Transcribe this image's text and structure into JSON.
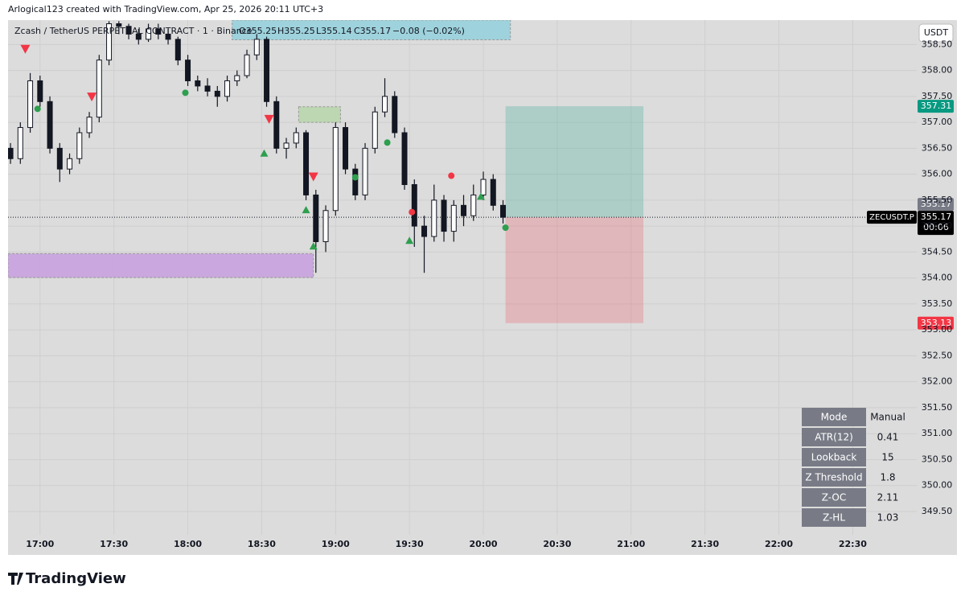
{
  "header": {
    "credit": "Arlogical123 created with TradingView.com, Apr 25, 2026 20:11 UTC+3",
    "symbol": "Zcash / TetherUS PERPETUAL CONTRACT · 1 · Binance",
    "open": "O355.25",
    "high": "H355.25",
    "low": "L355.14",
    "close": "C355.17",
    "change": "−0.08 (−0.02%)",
    "currency": "USDT"
  },
  "chart_data": {
    "type": "candlestick",
    "x": [
      "16:48",
      "16:52",
      "16:56",
      "17:00",
      "17:04",
      "17:08",
      "17:12",
      "17:16",
      "17:20",
      "17:24",
      "17:28",
      "17:32",
      "17:36",
      "17:40",
      "17:44",
      "17:48",
      "17:52",
      "17:56",
      "18:00",
      "18:04",
      "18:08",
      "18:12",
      "18:16",
      "18:20",
      "18:24",
      "18:28",
      "18:32",
      "18:36",
      "18:40",
      "18:44",
      "18:48",
      "18:52",
      "18:56",
      "19:00",
      "19:04",
      "19:08",
      "19:12",
      "19:16",
      "19:20",
      "19:24",
      "19:28",
      "19:32",
      "19:36",
      "19:40",
      "19:44",
      "19:48",
      "19:52",
      "19:56",
      "20:00",
      "20:04",
      "20:08"
    ],
    "open": [
      356.5,
      356.3,
      356.9,
      357.8,
      357.4,
      356.5,
      356.1,
      356.3,
      356.8,
      357.1,
      358.2,
      358.9,
      358.85,
      358.7,
      358.6,
      358.8,
      358.7,
      358.6,
      358.2,
      357.8,
      357.7,
      357.6,
      357.5,
      357.8,
      357.9,
      358.3,
      358.6,
      357.4,
      356.5,
      356.6,
      356.8,
      355.6,
      354.7,
      355.3,
      356.9,
      356.1,
      355.6,
      356.5,
      357.2,
      357.5,
      356.8,
      355.8,
      355.0,
      354.8,
      355.5,
      354.9,
      355.4,
      355.2,
      355.6,
      355.9,
      355.4
    ],
    "high": [
      356.6,
      357.0,
      357.95,
      357.9,
      357.5,
      356.6,
      356.4,
      356.9,
      357.2,
      358.3,
      358.95,
      358.95,
      358.9,
      358.8,
      358.9,
      358.9,
      358.8,
      358.65,
      358.3,
      357.9,
      357.85,
      357.7,
      357.9,
      358.0,
      358.4,
      358.7,
      358.65,
      357.5,
      356.7,
      356.9,
      356.85,
      355.7,
      355.4,
      357.0,
      357.0,
      356.2,
      356.6,
      357.3,
      357.85,
      357.6,
      356.9,
      355.9,
      355.2,
      355.8,
      355.6,
      355.5,
      355.6,
      355.8,
      356.05,
      356.0,
      355.5
    ],
    "low": [
      356.2,
      356.2,
      356.8,
      357.3,
      356.4,
      355.85,
      356.0,
      356.2,
      356.7,
      357.0,
      358.1,
      358.7,
      358.6,
      358.5,
      358.55,
      358.6,
      358.5,
      358.1,
      357.7,
      357.6,
      357.5,
      357.3,
      357.4,
      357.7,
      357.85,
      358.2,
      357.3,
      356.4,
      356.3,
      356.5,
      355.5,
      354.1,
      354.5,
      355.2,
      356.0,
      355.5,
      355.5,
      356.4,
      357.1,
      356.7,
      355.7,
      354.6,
      354.1,
      354.7,
      354.7,
      354.7,
      355.0,
      355.1,
      355.5,
      355.3,
      355.05
    ],
    "close": [
      356.3,
      356.9,
      357.8,
      357.4,
      356.5,
      356.1,
      356.3,
      356.8,
      357.1,
      358.2,
      358.9,
      358.85,
      358.7,
      358.6,
      358.8,
      358.7,
      358.6,
      358.2,
      357.8,
      357.7,
      357.6,
      357.5,
      357.8,
      357.9,
      358.3,
      358.6,
      357.4,
      356.5,
      356.6,
      356.8,
      355.6,
      354.7,
      355.3,
      356.9,
      356.1,
      355.6,
      356.5,
      357.2,
      357.5,
      356.8,
      355.8,
      355.0,
      354.8,
      355.5,
      354.9,
      355.4,
      355.2,
      355.6,
      355.9,
      355.4,
      355.17
    ],
    "color": "#131722",
    "ylim": [
      349.05,
      358.97
    ],
    "yticks": [
      {
        "value": 358.5,
        "label": "358.50"
      },
      {
        "value": 358,
        "label": "358.00"
      },
      {
        "value": 357.5,
        "label": "357.50"
      },
      {
        "value": 357,
        "label": "357.00"
      },
      {
        "value": 356.5,
        "label": "356.50"
      },
      {
        "value": 356,
        "label": "356.00"
      },
      {
        "value": 355.5,
        "label": "355.50"
      },
      {
        "value": 355,
        "label": "355.00"
      },
      {
        "value": 354.5,
        "label": "354.50"
      },
      {
        "value": 354,
        "label": "354.00"
      },
      {
        "value": 353.5,
        "label": "353.50"
      },
      {
        "value": 353,
        "label": "353.00"
      },
      {
        "value": 352.5,
        "label": "352.50"
      },
      {
        "value": 352,
        "label": "352.00"
      },
      {
        "value": 351.5,
        "label": "351.50"
      },
      {
        "value": 351,
        "label": "351.00"
      },
      {
        "value": 350.5,
        "label": "350.50"
      },
      {
        "value": 350,
        "label": "350.00"
      },
      {
        "value": 349.5,
        "label": "349.50"
      }
    ],
    "xlim": [
      "16:47",
      "22:56"
    ],
    "xticks": [
      "17:00",
      "17:30",
      "18:00",
      "18:30",
      "19:00",
      "19:30",
      "20:00",
      "20:30",
      "21:00",
      "21:30",
      "22:00",
      "22:30"
    ],
    "grid": true,
    "last_price": {
      "value": 355.17,
      "symbol": "ZECUSDT.P",
      "countdown": "00:06"
    },
    "position": {
      "start": "20:09",
      "end": "21:05",
      "target": 357.31,
      "entry": 355.17,
      "stop": 353.13,
      "target_color": "#089981",
      "stop_color": "#f23645"
    },
    "zones": [
      {
        "start": "16:47",
        "end": "18:51",
        "top": 354.47,
        "bottom": 354.01,
        "color": "#c59be0"
      },
      {
        "start": "18:18",
        "end": "20:11",
        "top": 358.97,
        "bottom": 358.59,
        "color": "#8fd0dc"
      },
      {
        "start": "18:45",
        "end": "19:02",
        "top": 357.3,
        "bottom": 357.0,
        "color": "#b5d6a8"
      }
    ],
    "signals": [
      {
        "time": "16:54",
        "price": 358.4,
        "shape": "down",
        "color": "#f23645"
      },
      {
        "time": "17:21",
        "price": 357.48,
        "shape": "down",
        "color": "#f23645"
      },
      {
        "time": "18:33",
        "price": 357.05,
        "shape": "down",
        "color": "#f23645"
      },
      {
        "time": "18:51",
        "price": 355.94,
        "shape": "down",
        "color": "#f23645"
      },
      {
        "time": "16:59",
        "price": 357.26,
        "shape": "dot",
        "color": "#2e9e4f"
      },
      {
        "time": "17:59",
        "price": 357.57,
        "shape": "dot",
        "color": "#2e9e4f"
      },
      {
        "time": "19:08",
        "price": 355.94,
        "shape": "dot",
        "color": "#2e9e4f"
      },
      {
        "time": "19:21",
        "price": 356.61,
        "shape": "dot",
        "color": "#2e9e4f"
      },
      {
        "time": "20:09",
        "price": 354.97,
        "shape": "dot",
        "color": "#2e9e4f"
      },
      {
        "time": "19:31",
        "price": 355.27,
        "shape": "dot",
        "color": "#f23645"
      },
      {
        "time": "19:47",
        "price": 355.97,
        "shape": "dot",
        "color": "#f23645"
      },
      {
        "time": "18:31",
        "price": 356.4,
        "shape": "up",
        "color": "#2e9e4f"
      },
      {
        "time": "18:48",
        "price": 355.31,
        "shape": "up",
        "color": "#2e9e4f"
      },
      {
        "time": "18:51",
        "price": 354.61,
        "shape": "up",
        "color": "#2e9e4f"
      },
      {
        "time": "19:30",
        "price": 354.72,
        "shape": "up",
        "color": "#2e9e4f"
      },
      {
        "time": "19:59",
        "price": 355.57,
        "shape": "up",
        "color": "#2e9e4f"
      }
    ]
  },
  "table": {
    "rows": [
      [
        "Mode",
        "Manual"
      ],
      [
        "ATR(12)",
        0.41
      ],
      [
        "Lookback",
        15
      ],
      [
        "Z Threshold",
        1.8
      ],
      [
        "Z-OC",
        2.11
      ],
      [
        "Z-HL",
        1.03
      ]
    ]
  },
  "footer": {
    "brand": "TradingView"
  }
}
